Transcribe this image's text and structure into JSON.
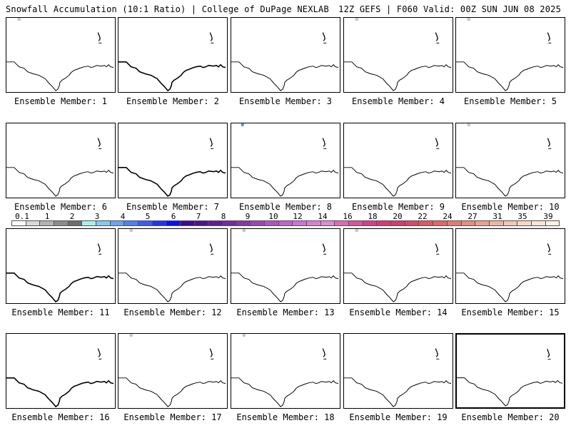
{
  "header": {
    "left": "Snowfall Accumulation (10:1 Ratio) | College of DuPage NEXLAB",
    "right": "12Z GEFS | F060 Valid: 00Z SUN JUN 08 2025"
  },
  "panels": [
    {
      "caption": "Ensemble Member: 1"
    },
    {
      "caption": "Ensemble Member: 2"
    },
    {
      "caption": "Ensemble Member: 3"
    },
    {
      "caption": "Ensemble Member: 4"
    },
    {
      "caption": "Ensemble Member: 5"
    },
    {
      "caption": "Ensemble Member: 6"
    },
    {
      "caption": "Ensemble Member: 7"
    },
    {
      "caption": "Ensemble Member: 8"
    },
    {
      "caption": "Ensemble Member: 9"
    },
    {
      "caption": "Ensemble Member: 10"
    },
    {
      "caption": "Ensemble Member: 11"
    },
    {
      "caption": "Ensemble Member: 12"
    },
    {
      "caption": "Ensemble Member: 13"
    },
    {
      "caption": "Ensemble Member: 14"
    },
    {
      "caption": "Ensemble Member: 15"
    },
    {
      "caption": "Ensemble Member: 16"
    },
    {
      "caption": "Ensemble Member: 17"
    },
    {
      "caption": "Ensemble Member: 18"
    },
    {
      "caption": "Ensemble Member: 19"
    },
    {
      "caption": "Ensemble Member: 20"
    }
  ],
  "legend": {
    "labels": [
      "0.1",
      "1",
      "2",
      "3",
      "4",
      "5",
      "6",
      "7",
      "8",
      "9",
      "10",
      "12",
      "14",
      "16",
      "18",
      "20",
      "22",
      "24",
      "27",
      "31",
      "35",
      "39"
    ],
    "colors": [
      "#ffffff",
      "#d9d9d9",
      "#b3b3b3",
      "#8c8c8c",
      "#6e6e6e",
      "#a8f0f0",
      "#86c8ee",
      "#6aa4ee",
      "#4f80f0",
      "#3a5cf2",
      "#2034f4",
      "#0a10f2",
      "#3c0c8c",
      "#50128e",
      "#641a96",
      "#762a9e",
      "#8836a8",
      "#9a46b4",
      "#ac56c0",
      "#bc66cc",
      "#cc74d4",
      "#d880d8",
      "#e08ad6",
      "#dc6cb8",
      "#d8549e",
      "#d63e8a",
      "#d43a78",
      "#d43c70",
      "#d84868",
      "#dc5864",
      "#e0686a",
      "#e47a74",
      "#e88c80",
      "#eca090",
      "#f0b4a2",
      "#f4c6b4",
      "#f8d6c4",
      "#fce4d6",
      "#fef0e4"
    ]
  }
}
